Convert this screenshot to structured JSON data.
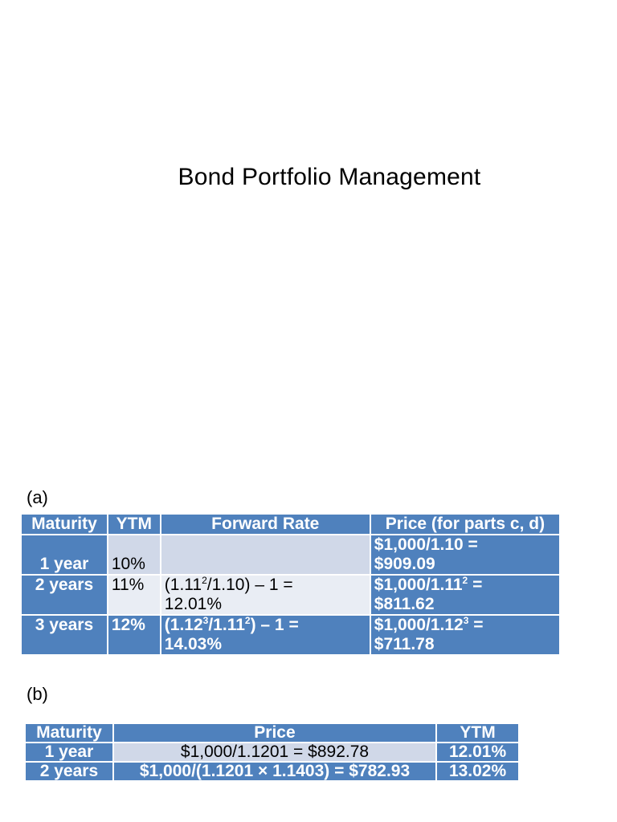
{
  "title": "Bond Portfolio Management",
  "part_a": {
    "label": "(a)",
    "headers": [
      "Maturity",
      "YTM",
      "Forward Rate",
      "Price (for parts c, d)"
    ],
    "rows": [
      {
        "maturity": "1 year",
        "ytm": "10%",
        "forward_rate": {
          "prefix": "",
          "sup": "",
          "suffix": "",
          "result": ""
        },
        "price": {
          "prefix": "$1,000/1.10 =",
          "sup": "",
          "suffix": "",
          "value": "$909.09"
        }
      },
      {
        "maturity": "2 years",
        "ytm": "11%",
        "forward_rate": {
          "prefix": "(1.11",
          "sup": "2",
          "suffix": "/1.10) – 1 =",
          "result": "12.01%"
        },
        "price": {
          "prefix": "$1,000/1.11",
          "sup": "2",
          "suffix": " =",
          "value": "$811.62"
        }
      },
      {
        "maturity": "3 years",
        "ytm": "12%",
        "forward_rate": {
          "prefix": "(1.12",
          "sup": "3",
          "mid": "/1.11",
          "sup2": "2",
          "suffix": ") – 1 =",
          "result": "14.03%"
        },
        "price": {
          "prefix": "$1,000/1.12",
          "sup": "3",
          "suffix": " =",
          "value": "$711.78"
        }
      }
    ]
  },
  "part_b": {
    "label": "(b)",
    "headers": [
      "Maturity",
      "Price",
      "YTM"
    ],
    "rows": [
      {
        "maturity": "1 year",
        "price": "$1,000/1.1201 = $892.78",
        "ytm": "12.01%"
      },
      {
        "maturity": "2 years",
        "price": "$1,000/(1.1201 × 1.1403) = $782.93",
        "ytm": "13.02%"
      }
    ]
  },
  "colors": {
    "header_blue": "#4f81bd",
    "light_row_1": "#d0d8e8",
    "light_row_2": "#e9edf4"
  }
}
